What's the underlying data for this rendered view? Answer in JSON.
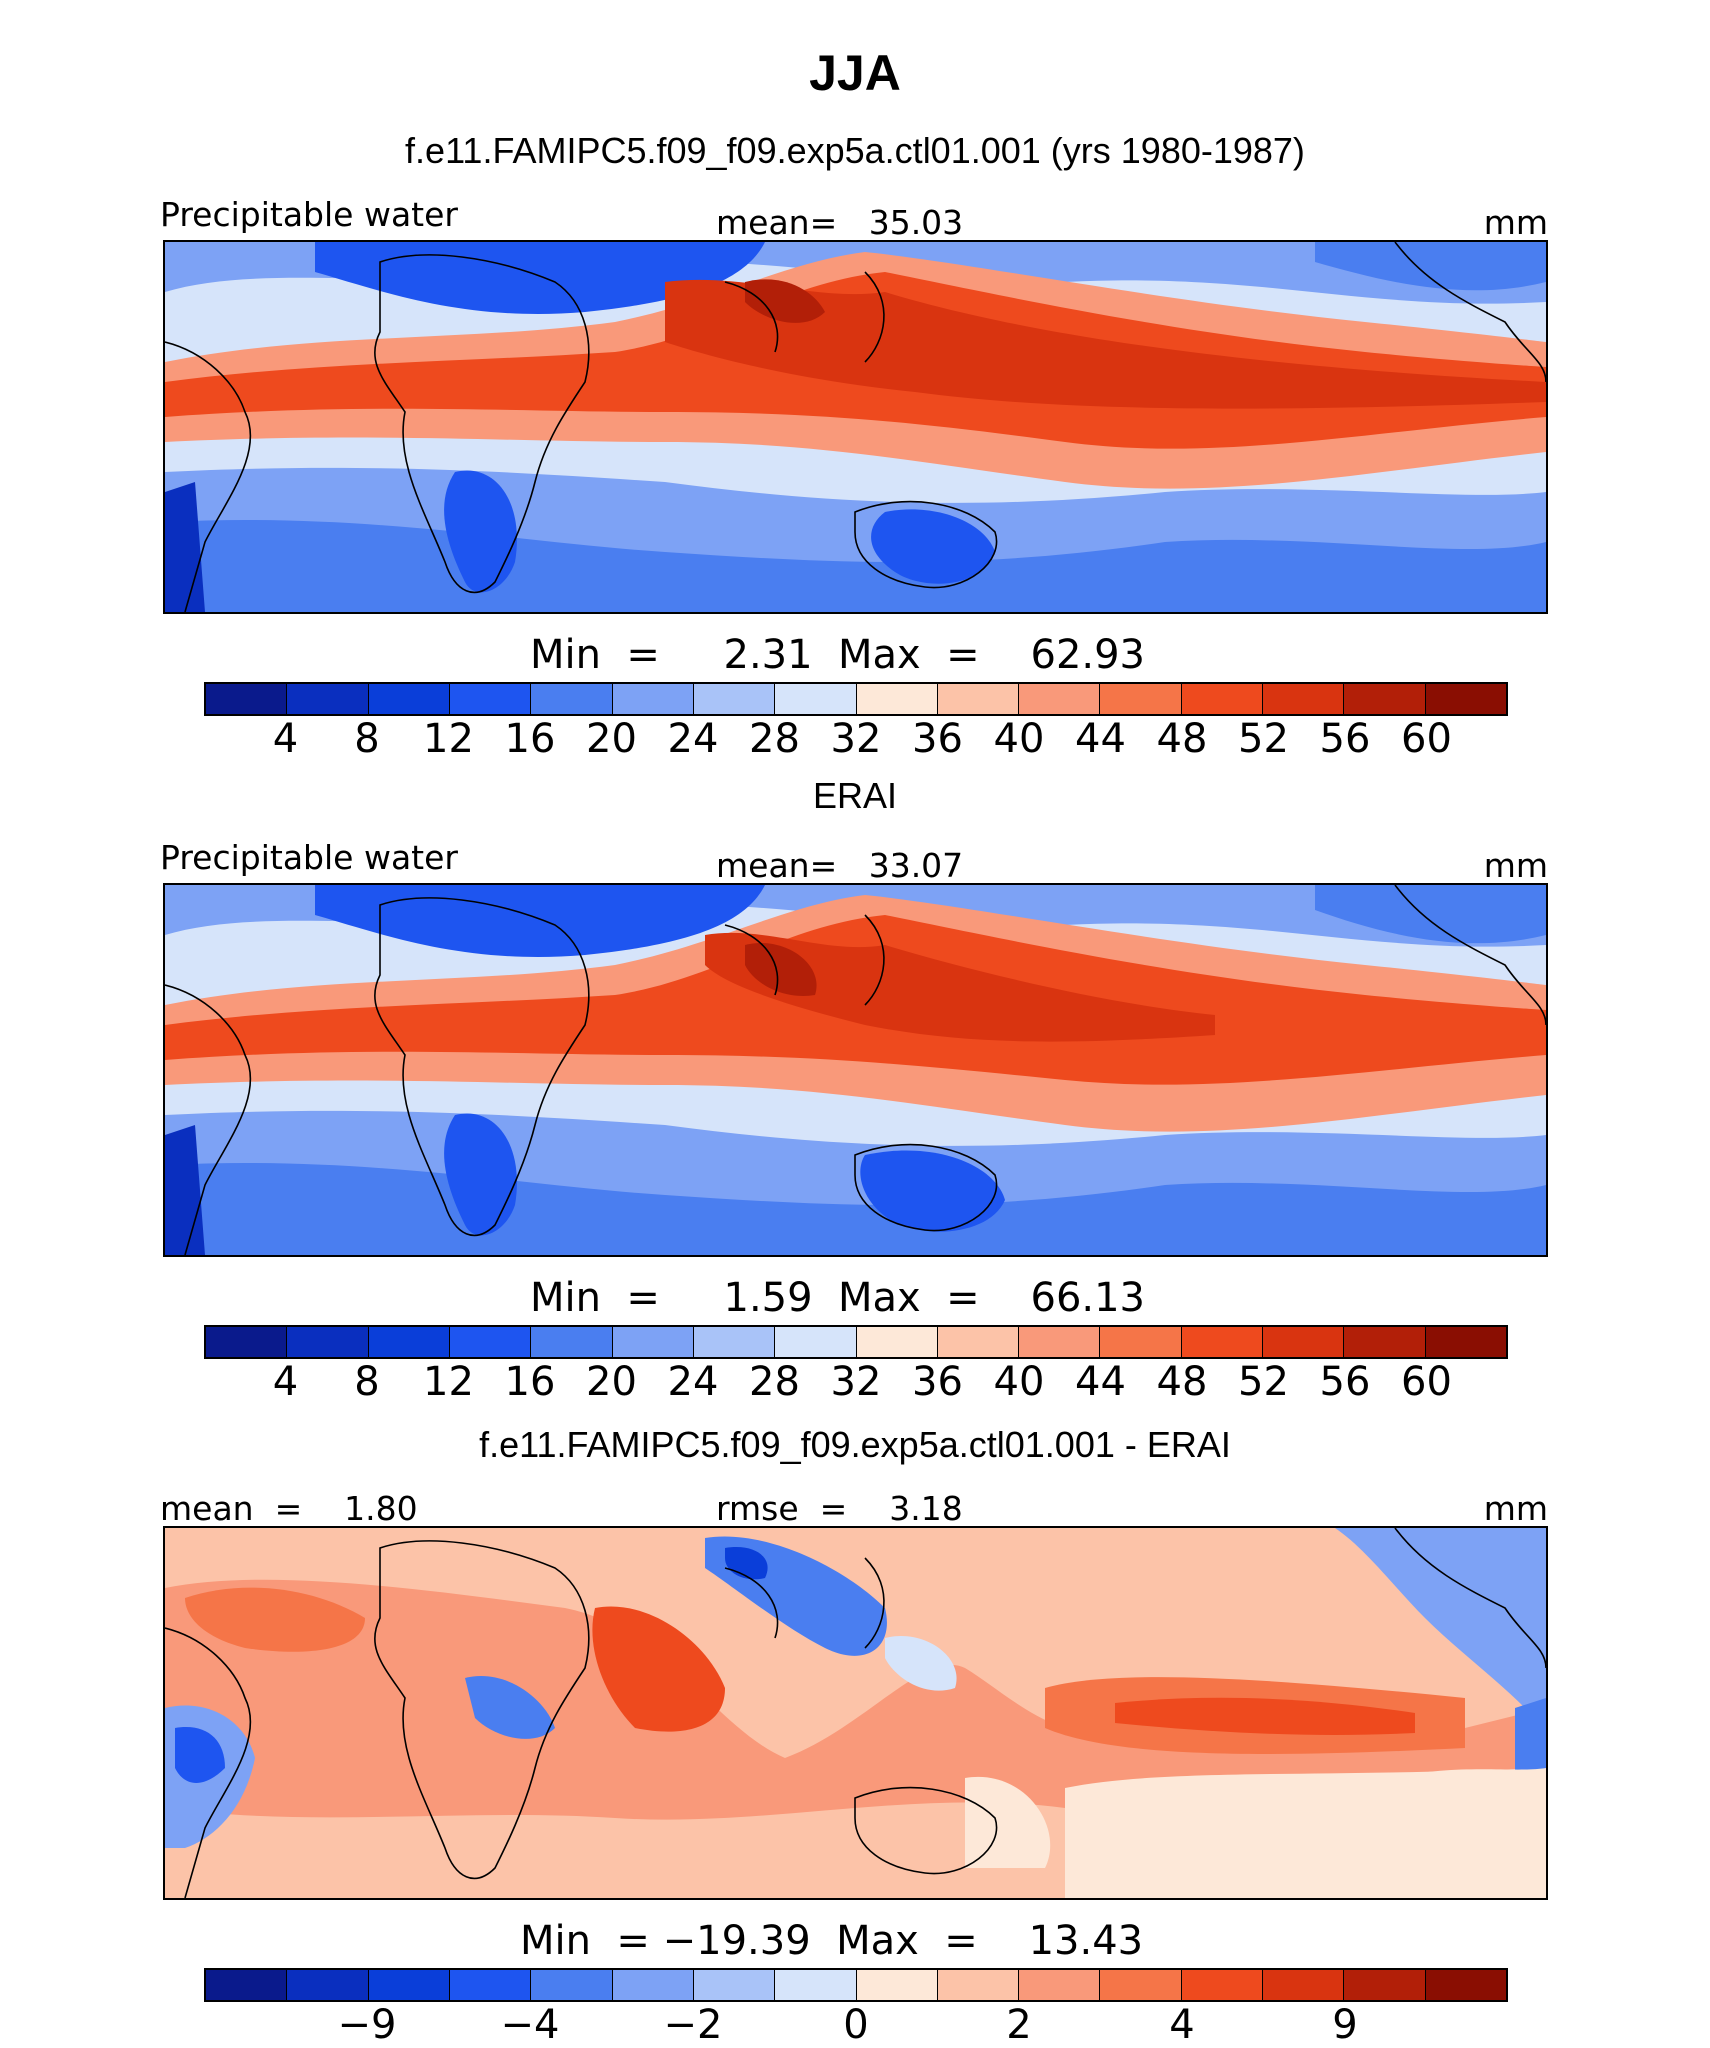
{
  "title": "JJA",
  "panels": [
    {
      "heading": "f.e11.FAMIPC5.f09_f09.exp5a.ctl01.001 (yrs 1980-1987)",
      "left_label": "Precipitable water",
      "center_label": "mean=   35.03",
      "right_label": "mm",
      "minmax": "Min  =     2.31  Max  =    62.93",
      "min": 2.31,
      "max": 62.93,
      "mean": 35.03
    },
    {
      "heading": "ERAI",
      "left_label": "Precipitable water",
      "center_label": "mean=   33.07",
      "right_label": "mm",
      "minmax": "Min  =     1.59  Max  =    66.13",
      "min": 1.59,
      "max": 66.13,
      "mean": 33.07
    },
    {
      "heading": "f.e11.FAMIPC5.f09_f09.exp5a.ctl01.001 - ERAI",
      "left_label": "mean  =    1.80",
      "center_label": "rmse  =    3.18",
      "right_label": "mm",
      "minmax": "Min  = −19.39  Max  =    13.43",
      "min": -19.39,
      "max": 13.43,
      "mean": 1.8,
      "rmse": 3.18
    }
  ],
  "colorbars": {
    "abs_colors": [
      "#0a1a8c",
      "#0a2fbf",
      "#0a3ed9",
      "#1e55f0",
      "#4a7ef0",
      "#7da2f5",
      "#a9c3f8",
      "#d6e4fa",
      "#fde8d8",
      "#fcc3a8",
      "#f9997a",
      "#f57548",
      "#ee4a1e",
      "#d93410",
      "#b21f08",
      "#8a0e02"
    ],
    "abs_ticks": [
      "4",
      "8",
      "12",
      "16",
      "20",
      "24",
      "28",
      "32",
      "36",
      "40",
      "44",
      "48",
      "52",
      "56",
      "60"
    ],
    "diff_colors": [
      "#0a1a8c",
      "#0a2fbf",
      "#0a3ed9",
      "#1e55f0",
      "#4a7ef0",
      "#7da2f5",
      "#a9c3f8",
      "#d6e4fa",
      "#fde8d8",
      "#fcc3a8",
      "#f9997a",
      "#f57548",
      "#ee4a1e",
      "#d93410",
      "#b21f08",
      "#8a0e02"
    ],
    "diff_ticks": [
      "−9",
      "−4",
      "−2",
      "0",
      "2",
      "4",
      "9"
    ]
  }
}
